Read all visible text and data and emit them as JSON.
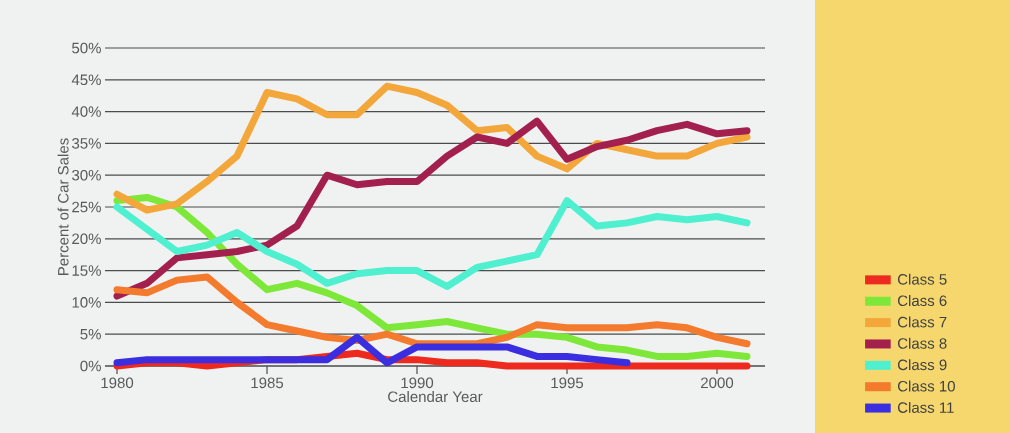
{
  "chart_data": {
    "type": "line",
    "xlabel": "Calendar Year",
    "ylabel": "Percent of Car Sales",
    "x": [
      1980,
      1981,
      1982,
      1983,
      1984,
      1985,
      1986,
      1987,
      1988,
      1989,
      1990,
      1991,
      1992,
      1993,
      1994,
      1995,
      1996,
      1997,
      1998,
      1999,
      2000,
      2001
    ],
    "series": [
      {
        "name": "Class 5",
        "color": "#ee2a1e",
        "values": [
          0,
          0.5,
          0.5,
          0,
          0.5,
          1,
          1,
          1.5,
          2,
          1,
          1,
          0.5,
          0.5,
          0,
          0,
          0,
          0,
          0,
          0,
          0,
          0,
          0
        ]
      },
      {
        "name": "Class 6",
        "color": "#7ee83a",
        "values": [
          26,
          26.5,
          25,
          21,
          16,
          12,
          13,
          11.5,
          9.5,
          6,
          6.5,
          7,
          6,
          5,
          5,
          4.5,
          3,
          2.5,
          1.5,
          1.5,
          2,
          1.5
        ]
      },
      {
        "name": "Class 7",
        "color": "#f3a73a",
        "values": [
          27,
          24.5,
          25.5,
          29,
          33,
          43,
          42,
          39.5,
          39.5,
          44,
          43,
          41,
          37,
          37.5,
          33,
          31,
          35,
          34,
          33,
          33,
          35,
          36
        ]
      },
      {
        "name": "Class 8",
        "color": "#a3204e",
        "values": [
          11,
          13,
          17,
          17.5,
          18,
          19,
          22,
          30,
          28.5,
          29,
          29,
          33,
          36,
          35,
          38.5,
          32.5,
          34.5,
          35.5,
          37,
          38,
          36.5,
          37
        ]
      },
      {
        "name": "Class 9",
        "color": "#4ff0d0",
        "values": [
          25,
          21.5,
          18,
          19,
          21,
          18,
          16,
          13,
          14.5,
          15,
          15,
          12.5,
          15.5,
          16.5,
          17.5,
          26,
          22,
          22.5,
          23.5,
          23,
          23.5,
          22.5
        ]
      },
      {
        "name": "Class 10",
        "color": "#f47a2e",
        "values": [
          12,
          11.5,
          13.5,
          14,
          10,
          6.5,
          5.5,
          4.5,
          4,
          5,
          3.5,
          3.5,
          3.5,
          4.5,
          6.5,
          6,
          6,
          6,
          6.5,
          6,
          4.5,
          3.5
        ]
      },
      {
        "name": "Class 11",
        "color": "#3a2ee0",
        "values": [
          0.5,
          1,
          1,
          1,
          1,
          1,
          1,
          1,
          4.5,
          0.5,
          3,
          3,
          3,
          3,
          1.5,
          1.5,
          1,
          0.5,
          null,
          null,
          null,
          null
        ]
      }
    ],
    "xlim": [
      1979.6,
      2001.6
    ],
    "xticks": [
      1980,
      1985,
      1990,
      1995,
      2000
    ],
    "ylim": [
      0,
      50
    ],
    "yticks": [
      {
        "value": 0,
        "label": "0%"
      },
      {
        "value": 5,
        "label": "5%"
      },
      {
        "value": 10,
        "label": "10%"
      },
      {
        "value": 15,
        "label": "15%"
      },
      {
        "value": 20,
        "label": "20%"
      },
      {
        "value": 25,
        "label": "25%"
      },
      {
        "value": 30,
        "label": "30%"
      },
      {
        "value": 35,
        "label": "35%"
      },
      {
        "value": 40,
        "label": "40%"
      },
      {
        "value": 45,
        "label": "45%"
      },
      {
        "value": 50,
        "label": "50%"
      }
    ],
    "grid": "y",
    "legend": "right",
    "marker": "none",
    "line_style": "solid"
  }
}
